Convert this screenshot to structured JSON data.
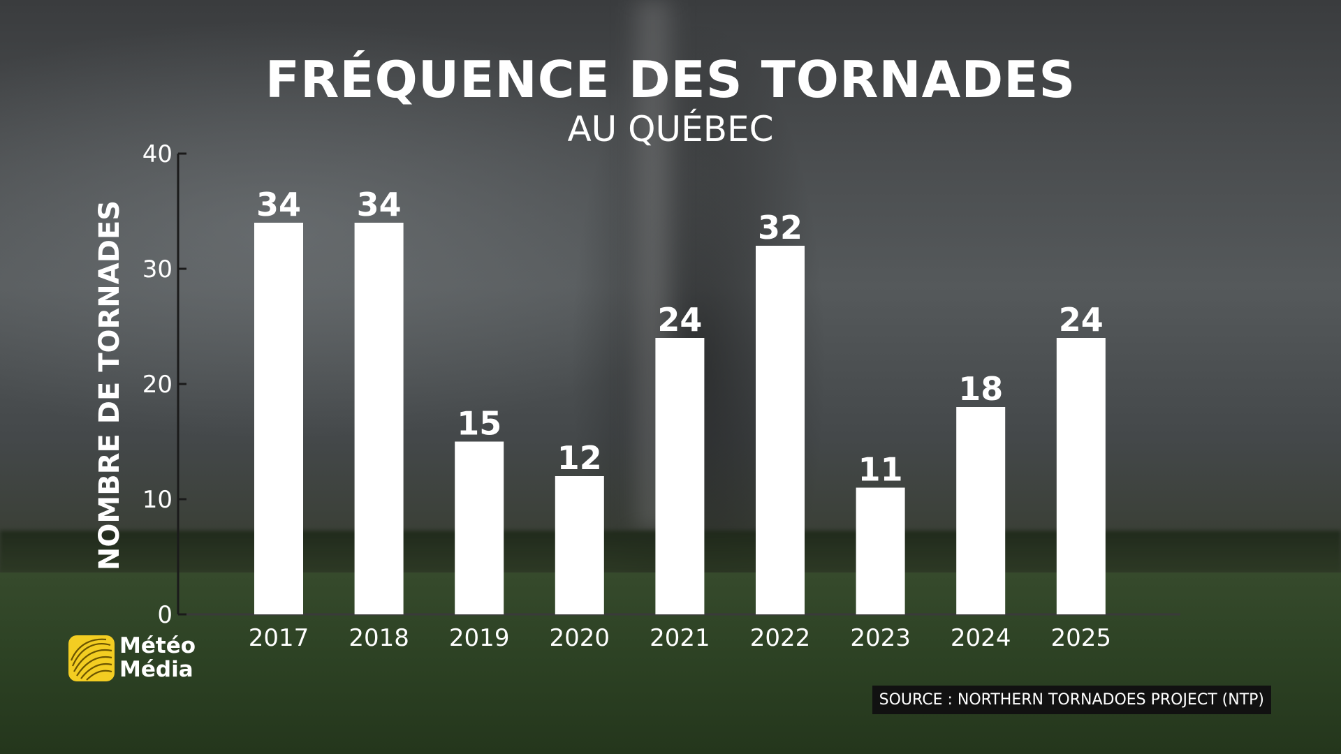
{
  "title": "FRÉQUENCE DES TORNADES",
  "subtitle": "AU QUÉBEC",
  "logo": {
    "line1": "Météo",
    "line2": "Média",
    "badge_color": "#f3cd22"
  },
  "source": "SOURCE : NORTHERN TORNADOES PROJECT (NTP)",
  "chart_data": {
    "type": "bar",
    "categories": [
      "2017",
      "2018",
      "2019",
      "2020",
      "2021",
      "2022",
      "2023",
      "2024",
      "2025"
    ],
    "values": [
      34,
      34,
      15,
      12,
      24,
      32,
      11,
      18,
      24
    ],
    "ylabel": "NOMBRE DE TORNADES",
    "ylim": [
      0,
      40
    ],
    "yticks": [
      0,
      10,
      20,
      30,
      40
    ],
    "grid": false,
    "data_labels": true,
    "bar_color": "#ffffff"
  }
}
